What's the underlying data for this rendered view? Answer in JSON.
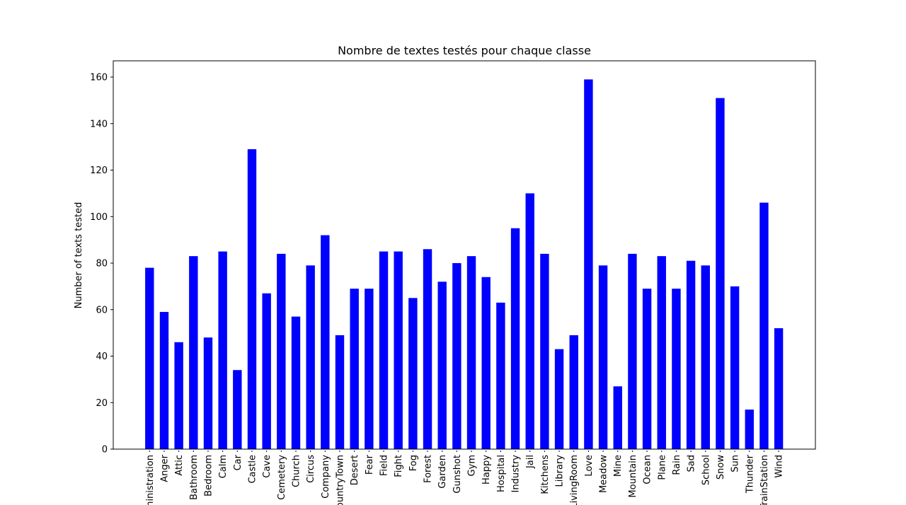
{
  "chart_data": {
    "type": "bar",
    "title": "Nombre de textes testés pour chaque classe",
    "xlabel": "",
    "ylabel": "Number of texts tested",
    "ylim": [
      0,
      167
    ],
    "yticks": [
      0,
      20,
      40,
      60,
      80,
      100,
      120,
      140,
      160
    ],
    "grid": false,
    "bar_color": "#0000ff",
    "categories": [
      "Administration",
      "Anger",
      "Attic",
      "Bathroom",
      "Bedroom",
      "Calm",
      "Car",
      "Castle",
      "Cave",
      "Cemetery",
      "Church",
      "Circus",
      "Company",
      "CountryTown",
      "Desert",
      "Fear",
      "Field",
      "Fight",
      "Fog",
      "Forest",
      "Garden",
      "Gunshot",
      "Gym",
      "Happy",
      "Hospital",
      "Industry",
      "Jail",
      "Kitchens",
      "Library",
      "LivingRoom",
      "Love",
      "Meadow",
      "Mine",
      "Mountain",
      "Ocean",
      "Plane",
      "Rain",
      "Sad",
      "School",
      "Snow",
      "Sun",
      "Thunder",
      "TrainStation",
      "Wind"
    ],
    "values": [
      78,
      59,
      46,
      83,
      48,
      85,
      34,
      129,
      67,
      84,
      57,
      79,
      92,
      49,
      69,
      69,
      85,
      85,
      65,
      86,
      72,
      80,
      83,
      74,
      63,
      95,
      110,
      84,
      43,
      49,
      159,
      79,
      27,
      84,
      69,
      83,
      69,
      81,
      79,
      151,
      70,
      17,
      106,
      52
    ]
  }
}
